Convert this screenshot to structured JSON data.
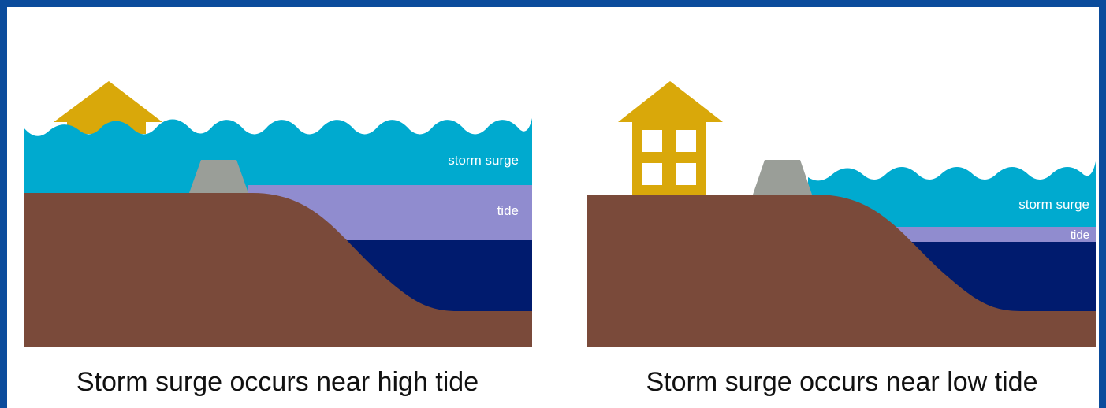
{
  "panels": [
    {
      "surge_label": "storm surge",
      "tide_label": "tide",
      "caption": "Storm surge occurs near high tide"
    },
    {
      "surge_label": "storm surge",
      "tide_label": "tide",
      "caption": "Storm surge occurs near low tide"
    }
  ]
}
